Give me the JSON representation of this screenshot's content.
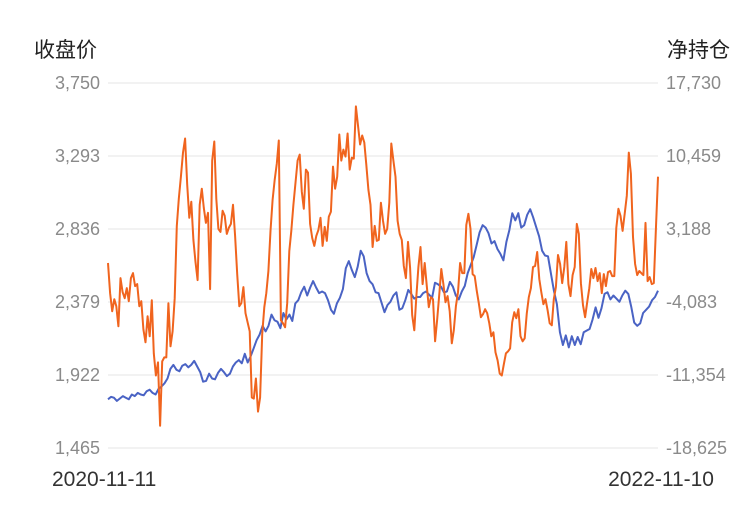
{
  "chart_data": {
    "type": "line",
    "left_axis_title": "收盘价",
    "right_axis_title": "净持仓",
    "x_start_label": "2020-11-11",
    "x_end_label": "2022-11-10",
    "left_ticks": [
      "3,750",
      "3,293",
      "2,836",
      "2,379",
      "1,922",
      "1,465"
    ],
    "right_ticks": [
      "17,730",
      "10,459",
      "3,188",
      "-4,083",
      "-11,354",
      "-18,625"
    ],
    "ylim_left": [
      1465,
      3750
    ],
    "ylim_right": [
      -18625,
      17730
    ],
    "grid": true,
    "series": [
      {
        "axis": "left",
        "color": "#4a63c4",
        "values": [
          1770,
          1785,
          1780,
          1760,
          1775,
          1790,
          1780,
          1770,
          1800,
          1790,
          1810,
          1800,
          1795,
          1820,
          1830,
          1810,
          1800,
          1835,
          1850,
          1870,
          1900,
          1960,
          1985,
          1955,
          1945,
          1980,
          1990,
          1970,
          1985,
          2010,
          1975,
          1940,
          1880,
          1885,
          1930,
          1900,
          1895,
          1935,
          1960,
          1940,
          1915,
          1930,
          1975,
          2000,
          2015,
          1995,
          2055,
          2000,
          2040,
          2090,
          2140,
          2175,
          2230,
          2195,
          2230,
          2300,
          2265,
          2255,
          2215,
          2310,
          2270,
          2300,
          2260,
          2370,
          2390,
          2440,
          2475,
          2420,
          2470,
          2510,
          2470,
          2435,
          2445,
          2435,
          2390,
          2330,
          2305,
          2370,
          2405,
          2460,
          2590,
          2635,
          2580,
          2535,
          2600,
          2700,
          2665,
          2560,
          2510,
          2490,
          2440,
          2435,
          2375,
          2315,
          2360,
          2380,
          2420,
          2440,
          2330,
          2340,
          2390,
          2455,
          2430,
          2400,
          2410,
          2410,
          2435,
          2445,
          2425,
          2405,
          2500,
          2490,
          2475,
          2440,
          2445,
          2505,
          2475,
          2420,
          2395,
          2445,
          2480,
          2560,
          2610,
          2660,
          2735,
          2815,
          2860,
          2845,
          2810,
          2745,
          2760,
          2710,
          2680,
          2640,
          2755,
          2830,
          2935,
          2890,
          2935,
          2845,
          2860,
          2925,
          2960,
          2910,
          2850,
          2790,
          2700,
          2670,
          2665,
          2555,
          2450,
          2365,
          2190,
          2110,
          2170,
          2095,
          2165,
          2110,
          2160,
          2115,
          2190,
          2200,
          2210,
          2270,
          2345,
          2280,
          2340,
          2430,
          2440,
          2395,
          2420,
          2400,
          2380,
          2420,
          2450,
          2430,
          2350,
          2250,
          2230,
          2245,
          2310,
          2330,
          2350,
          2390,
          2410,
          2450
        ]
      },
      {
        "axis": "right",
        "color": "#f0641e",
        "values": [
          -200,
          -3200,
          -5000,
          -3800,
          -4500,
          -6500,
          -1700,
          -3100,
          -3700,
          -2700,
          -4000,
          -1700,
          -1200,
          -2500,
          -2300,
          -4500,
          -4000,
          -6800,
          -8100,
          -5500,
          -7500,
          -3900,
          -9200,
          -11400,
          -10100,
          -16400,
          -10000,
          -9600,
          -9600,
          -4200,
          -8500,
          -7000,
          -3700,
          3500,
          6200,
          8400,
          10800,
          12200,
          7600,
          4300,
          5900,
          2100,
          -100,
          -1900,
          5600,
          7200,
          5300,
          3800,
          4800,
          -2800,
          10000,
          11900,
          6200,
          3200,
          2900,
          5000,
          4500,
          2700,
          3300,
          3700,
          5600,
          2500,
          -1300,
          -4500,
          -4200,
          -2600,
          -5200,
          -6100,
          -7000,
          -13600,
          -13700,
          -11700,
          -15000,
          -13600,
          -7300,
          -4600,
          -3200,
          -1000,
          3000,
          6100,
          8100,
          9700,
          12000,
          -5900,
          -6200,
          -6600,
          -4200,
          1000,
          3000,
          5600,
          7800,
          10000,
          10600,
          6900,
          5200,
          9100,
          8800,
          3700,
          2300,
          1500,
          2500,
          3100,
          4300,
          1500,
          3400,
          2000,
          4400,
          4900,
          9400,
          7200,
          8400,
          12600,
          10000,
          11100,
          10400,
          12700,
          9100,
          10300,
          10200,
          15400,
          13500,
          11600,
          12500,
          11800,
          9600,
          7100,
          5600,
          1400,
          3500,
          2000,
          2100,
          5800,
          4000,
          2700,
          3200,
          5800,
          11700,
          10000,
          8400,
          4000,
          2700,
          2100,
          -500,
          -1700,
          1900,
          -700,
          -5400,
          -6900,
          -3600,
          -600,
          1400,
          -2300,
          -200,
          -2500,
          -4600,
          -3600,
          -3800,
          -8000,
          -5800,
          -3300,
          -800,
          -2300,
          -4100,
          -3500,
          -5000,
          -8200,
          -6900,
          -4500,
          -3100,
          -200,
          -1200,
          -1200,
          3600,
          4700,
          3200,
          -1300,
          -1500,
          -3000,
          -4200,
          -5600,
          -5300,
          -4800,
          -5200,
          -6200,
          -7500,
          -7100,
          -9100,
          -9900,
          -11200,
          -11400,
          -10300,
          -9200,
          -9000,
          -8700,
          -6100,
          -5100,
          -5700,
          -4800,
          -7500,
          -8000,
          -7700,
          -5200,
          -3600,
          -2700,
          -600,
          -500,
          900,
          -1800,
          -3100,
          -4300,
          -3800,
          -4900,
          -6200,
          -6400,
          -3800,
          -2600,
          600,
          -300,
          -2200,
          -600,
          1900,
          -2300,
          -3500,
          -1400,
          -600,
          3700,
          2700,
          -2200,
          -4400,
          -5600,
          -4100,
          -2700,
          -800,
          -1700,
          -700,
          -2000,
          -1200,
          -3200,
          -1300,
          -2500,
          -1100,
          -1000,
          -1500,
          -1500,
          3300,
          5200,
          4500,
          3000,
          4700,
          6500,
          10800,
          8700,
          2400,
          -300,
          -1400,
          -1000,
          -1200,
          -1400,
          3800,
          -2000,
          -1600,
          -2300,
          -2200,
          3200,
          8400
        ],
        "source_note_omit": true
      }
    ]
  }
}
